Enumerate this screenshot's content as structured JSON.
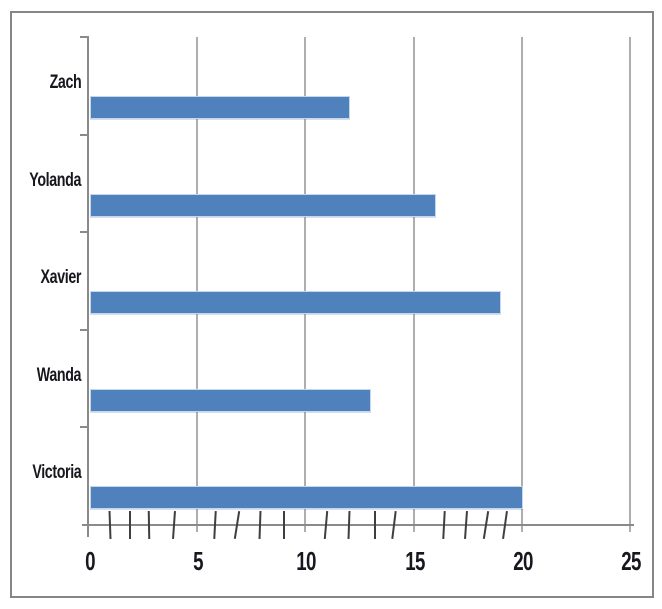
{
  "figure": {
    "background_color": "#ffffff",
    "border_color": "#868686"
  },
  "chart_data": {
    "type": "bar",
    "orientation": "horizontal",
    "title": "",
    "xlabel": "",
    "ylabel": "",
    "categories": [
      "Zach",
      "Yolanda",
      "Xavier",
      "Wanda",
      "Victoria"
    ],
    "values": [
      12,
      16,
      19,
      13,
      20
    ],
    "xlim": [
      0,
      25
    ],
    "x_tick_labels": [
      "0",
      "5",
      "10",
      "15",
      "20",
      "25"
    ],
    "x_major_ticks": [
      0,
      5,
      10,
      15,
      20,
      25
    ],
    "x_minor_ticks": [
      1,
      2,
      3,
      4,
      6,
      7,
      8,
      9,
      11,
      12,
      13,
      14,
      16,
      17,
      18,
      19
    ],
    "grid": true,
    "legend": false,
    "bar_color": "#4F81BD",
    "bar_edge_color": "#C6D6EB",
    "gridline_color": "#AEAEAE",
    "axis_color": "#8A8A8A",
    "minor_tick_color": "#3F3F3F",
    "label_color": "#17171D"
  }
}
